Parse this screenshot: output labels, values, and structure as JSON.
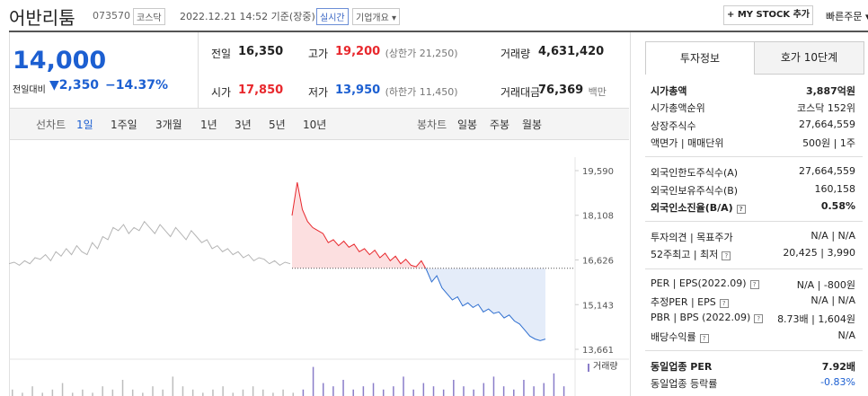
{
  "header": {
    "name": "어반리툼",
    "code": "073570",
    "market": "코스닥",
    "timestamp": "2022.12.21 14:52 기준(장중)",
    "realtime": "실시간",
    "company_overview": "기업개요 ▾",
    "my_stock_button": "+ MY STOCK 추가",
    "quick_order": "빠른주문 ▾"
  },
  "price": {
    "current": "14,000",
    "change_label": "전일대비",
    "change": "▼2,350",
    "change_rate": "−14.37%"
  },
  "stats": [
    {
      "label": "전일",
      "value": "16,350"
    },
    {
      "label": "고가",
      "value": "19,200",
      "note": "(상한가 21,250)",
      "tone": "up"
    },
    {
      "label": "거래량",
      "value": "4,631,420"
    },
    {
      "label": "시가",
      "value": "17,850",
      "tone": "up"
    },
    {
      "label": "저가",
      "value": "13,950",
      "note": "(하한가 11,450)",
      "tone": "down"
    },
    {
      "label": "거래대금",
      "value": "76,369",
      "note": "백만"
    }
  ],
  "chart_tabs": {
    "line_label": "선차트",
    "line": [
      "1일",
      "1주일",
      "3개월",
      "1년",
      "3년",
      "5년",
      "10년"
    ],
    "candle_label": "봉차트",
    "candle": [
      "일봉",
      "주봉",
      "월봉"
    ]
  },
  "chart": {
    "type": "line",
    "ylim": [
      13661,
      19590
    ],
    "yticks": [
      {
        "value": 19590,
        "label": "19,590"
      },
      {
        "value": 18108,
        "label": "18,108"
      },
      {
        "value": 16626,
        "label": "16,626"
      },
      {
        "value": 15143,
        "label": "15,143"
      },
      {
        "value": 13661,
        "label": "13,661"
      }
    ],
    "baseline": 16350,
    "previous_day": {
      "color": "#b4b4b4",
      "values": [
        16500,
        16550,
        16450,
        16600,
        16500,
        16700,
        16650,
        16800,
        16600,
        16900,
        16750,
        17000,
        16800,
        17100,
        16900,
        16800,
        17200,
        17000,
        17400,
        17300,
        17700,
        17600,
        17800,
        17500,
        17700,
        17600,
        17900,
        17700,
        17500,
        17800,
        17600,
        17400,
        17700,
        17500,
        17300,
        17600,
        17400,
        17200,
        17300,
        17000,
        17100,
        16900,
        17000,
        16800,
        16900,
        16700,
        16800,
        16600,
        16700,
        16650,
        16500,
        16600,
        16450,
        16550,
        16500
      ]
    },
    "today": {
      "up_color": "#e8282d",
      "down_color": "#2f6fd0",
      "values": [
        18100,
        19200,
        18300,
        17900,
        17700,
        17600,
        17500,
        17200,
        17300,
        17100,
        17250,
        17050,
        17150,
        16900,
        17000,
        16800,
        16950,
        16700,
        16850,
        16600,
        16750,
        16500,
        16650,
        16450,
        16400,
        16600,
        16300,
        15900,
        16100,
        15700,
        15500,
        15300,
        15400,
        15100,
        15200,
        15050,
        15150,
        14900,
        15000,
        14850,
        14900,
        14700,
        14800,
        14600,
        14500,
        14300,
        14100,
        14000,
        13950,
        14000
      ]
    },
    "volume_label": "거래량",
    "volume_ylim": [
      0,
      10
    ],
    "volumes": [
      2,
      1,
      3,
      1,
      2,
      4,
      1,
      2,
      1,
      3,
      2,
      5,
      2,
      1,
      3,
      2,
      6,
      3,
      2,
      1,
      2,
      3,
      1,
      2,
      3,
      2,
      1,
      2,
      1,
      2,
      9,
      4,
      3,
      5,
      2,
      3,
      4,
      2,
      3,
      6,
      2,
      4,
      3,
      2,
      5,
      3,
      2,
      4,
      6,
      3,
      2,
      5,
      3,
      4,
      7,
      3
    ]
  },
  "side_panel": {
    "tabs": [
      "투자정보",
      "호가 10단계"
    ],
    "sections": [
      [
        {
          "label": "시가총액",
          "value": "3,887억원",
          "bold": true
        },
        {
          "label": "시가총액순위",
          "value": "코스닥 152위"
        },
        {
          "label": "상장주식수",
          "value": "27,664,559"
        },
        {
          "label": "액면가 | 매매단위",
          "value": "500원 | 1주"
        }
      ],
      [
        {
          "label": "외국인한도주식수(A)",
          "value": "27,664,559"
        },
        {
          "label": "외국인보유주식수(B)",
          "value": "160,158"
        },
        {
          "label": "외국인소진율(B/A)",
          "value": "0.58%",
          "bold": true,
          "help": true
        }
      ],
      [
        {
          "label": "투자의견 | 목표주가",
          "value": "N/A | N/A"
        },
        {
          "label": "52주최고 | 최저",
          "value": "20,425 | 3,990",
          "help": true
        }
      ],
      [
        {
          "label": "PER | EPS(2022.09)",
          "value": "N/A | -800원",
          "help": true
        },
        {
          "label": "추정PER | EPS",
          "value": "N/A | N/A",
          "help": true
        },
        {
          "label": "PBR | BPS (2022.09)",
          "value": "8.73배 | 1,604원",
          "help": true
        },
        {
          "label": "배당수익률",
          "value": "N/A",
          "help": true
        }
      ],
      [
        {
          "label": "동일업종 PER",
          "value": "7.92배",
          "bold": true
        },
        {
          "label": "동일업종 등락률",
          "value": "-0.83%",
          "tone": "down"
        }
      ]
    ]
  }
}
